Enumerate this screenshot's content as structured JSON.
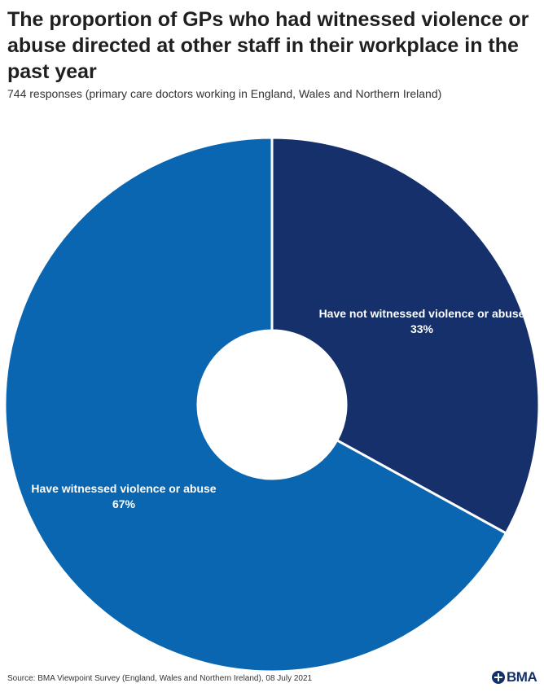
{
  "title": "The proportion of GPs who had witnessed violence or abuse directed at other staff in their workplace in the past year",
  "subtitle": "744 responses (primary care doctors working in England, Wales and Northern Ireland)",
  "source": "Source: BMA Viewpoint Survey (England, Wales and Northern Ireland), 08 July 2021",
  "logo": {
    "icon": "bma-logo-icon",
    "text": "BMA"
  },
  "colors": {
    "witnessed": "#0a66b0",
    "not_witnessed": "#15306b",
    "background": "#ffffff"
  },
  "chart_data": {
    "type": "pie",
    "style": "donut",
    "title": "The proportion of GPs who had witnessed violence or abuse directed at other staff in their workplace in the past year",
    "start": "12 o'clock",
    "direction": "clockwise",
    "slices": [
      {
        "label": "Have not witnessed violence or abuse",
        "value": 33,
        "value_label": "33%",
        "color": "#15306b"
      },
      {
        "label": "Have witnessed violence or abuse",
        "value": 67,
        "value_label": "67%",
        "color": "#0a66b0"
      }
    ]
  }
}
